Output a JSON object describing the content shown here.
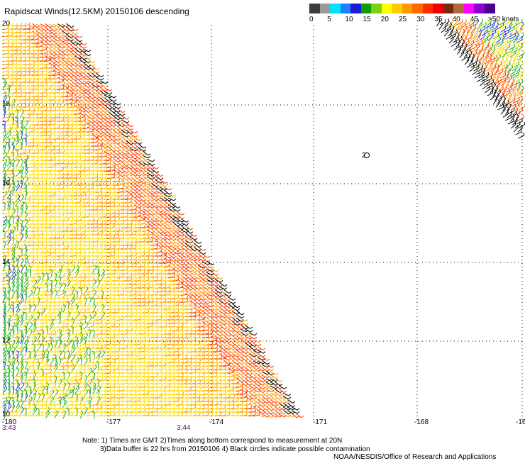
{
  "title": "Rapidscat Winds(12.5KM) 20150106 descending",
  "legend": {
    "unit_label": ">50 knots",
    "ticks": [
      "0",
      "5",
      "10",
      "15",
      "20",
      "25",
      "30",
      "35",
      "40",
      "45"
    ],
    "colors": [
      "#3c3c3c",
      "#9a9a9a",
      "#00e5ff",
      "#1e80ff",
      "#1c1cd8",
      "#0c9c0c",
      "#7cd014",
      "#ffff00",
      "#ffcc00",
      "#ff9900",
      "#ff6a00",
      "#ff2a00",
      "#ee0000",
      "#7a2a0a",
      "#b06a3a",
      "#ff00ff",
      "#9000d0",
      "#4c0090"
    ]
  },
  "axes": {
    "x_ticks": [
      "-180",
      "-177",
      "-174",
      "-171",
      "-168",
      "-16"
    ],
    "y_ticks": [
      "20",
      "18",
      "16",
      "14",
      "12",
      "10"
    ]
  },
  "times": {
    "left": "3:43",
    "mid": "3:44"
  },
  "marker": {
    "label": "2"
  },
  "notes": [
    "Note: 1) Times are GMT 2)Times along bottom correspond to measurement at 20N",
    "3)Data buffer is 22 hrs from 20150106 4) Black circles indicate possible contamination"
  ],
  "credit": "NOAA/NESDIS/Office of Research and Applications",
  "colors": {
    "green": "#22b022",
    "blue": "#1c3cd8",
    "yellow": "#ffdd00",
    "orange": "#ff9900",
    "red": "#ff3a00",
    "black": "#000000"
  }
}
